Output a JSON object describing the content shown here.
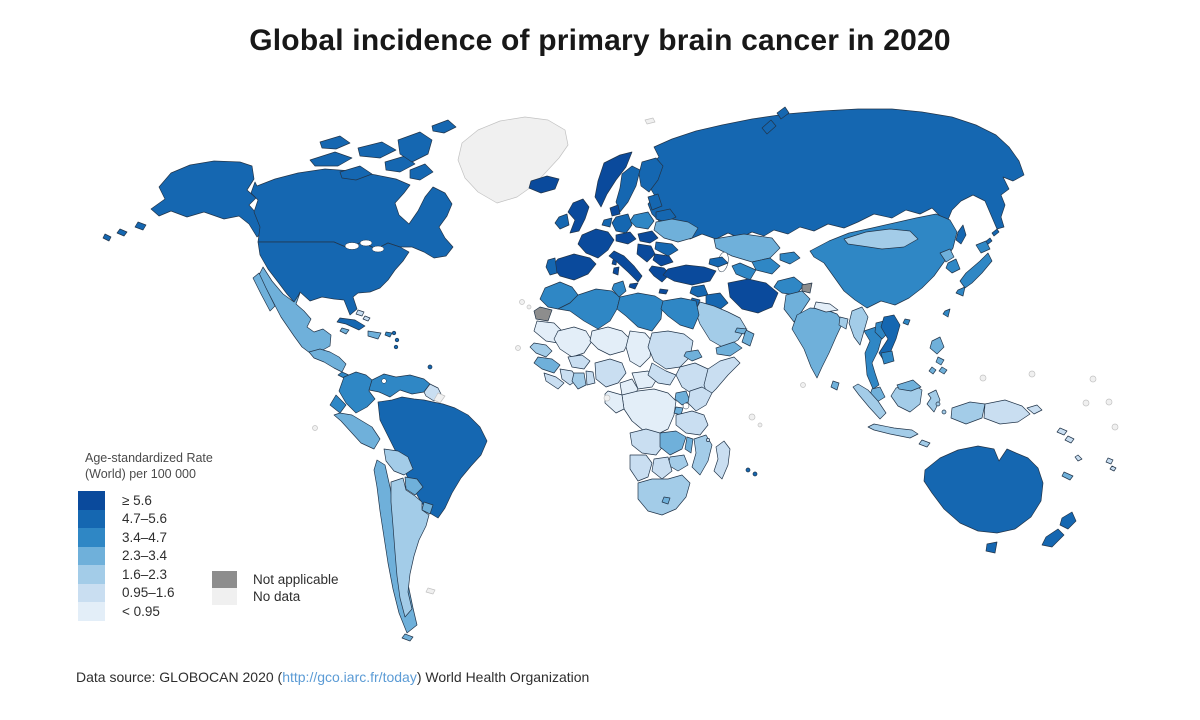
{
  "title": "Global incidence of primary brain cancer in 2020",
  "legend": {
    "title_line1": "Age-standardized Rate",
    "title_line2": "(World) per 100 000",
    "categories": [
      {
        "key": "c1",
        "label": "≥ 5.6",
        "color": "#0a4a9c"
      },
      {
        "key": "c2",
        "label": "4.7–5.6",
        "color": "#1567b1"
      },
      {
        "key": "c3",
        "label": "3.4–4.7",
        "color": "#2f87c5"
      },
      {
        "key": "c4",
        "label": "2.3–3.4",
        "color": "#6fb0da"
      },
      {
        "key": "c5",
        "label": "1.6–2.3",
        "color": "#a3cce8"
      },
      {
        "key": "c6",
        "label": "0.95–1.6",
        "color": "#c9def1"
      },
      {
        "key": "c7",
        "label": "< 0.95",
        "color": "#e3eef8"
      }
    ],
    "special": [
      {
        "key": "na",
        "label": "Not applicable",
        "color": "#8d8d8d"
      },
      {
        "key": "nd",
        "label": "No data",
        "color": "#f0f0f0"
      }
    ]
  },
  "footer": {
    "prefix": "Data source: GLOBOCAN 2020 (",
    "link": "http://gco.iarc.fr/today",
    "suffix": ") World Health Organization",
    "link_color": "#5b9bd5"
  },
  "map": {
    "ocean_color": "#ffffff",
    "border_color": "#22354a",
    "regions": {
      "alaska": "c2",
      "aleutians": "c2",
      "canada": "c2",
      "arctic-islands": "c2",
      "greenland": "nd",
      "usa": "c2",
      "mexico": "c4",
      "guatemala-honduras": "c4",
      "costa-rica-panama": "c3",
      "cuba": "c2",
      "jamaica": "c4",
      "hispaniola": "c4",
      "puerto-rico": "c3",
      "bahamas": "c6",
      "lesser-antilles": "c2",
      "colombia": "c3",
      "venezuela": "c3",
      "guyanas": "c6",
      "french-guiana": "nd",
      "ecuador": "c3",
      "peru": "c4",
      "brazil": "c2",
      "bolivia": "c5",
      "paraguay": "c4",
      "uruguay": "c4",
      "chile": "c4",
      "argentina": "c5",
      "falklands": "nd",
      "iceland": "c1",
      "norway": "c1",
      "sweden": "c2",
      "finland": "c2",
      "denmark": "c1",
      "uk": "c1",
      "ireland": "c2",
      "baltics": "c2",
      "belarus": "c2",
      "poland": "c3",
      "germany": "c2",
      "benelux": "c2",
      "france": "c1",
      "spain": "c1",
      "portugal": "c2",
      "italy": "c1",
      "austria": "c1",
      "hungary": "c1",
      "balkans": "c1",
      "bulgaria": "c1",
      "greece": "c1",
      "romania": "c2",
      "ukraine": "c4",
      "russia": "c2",
      "svalbard": "nd",
      "kazakhstan": "c4",
      "uzbekistan": "c3",
      "turkmenistan": "c3",
      "kyrgyzstan": "c3",
      "caucasus": "c2",
      "turkey": "c1",
      "syria": "c2",
      "jordan-israel": "c2",
      "iraq": "c2",
      "iran": "c1",
      "afghanistan": "c3",
      "pakistan": "c4",
      "kashmir": "na",
      "saudi-arabia": "c5",
      "yemen": "c4",
      "oman": "c4",
      "uae": "c4",
      "india": "c4",
      "nepal": "c7",
      "bangladesh": "c5",
      "sri-lanka": "c4",
      "myanmar": "c5",
      "thailand": "c3",
      "laos": "c3",
      "vietnam": "c2",
      "cambodia": "c3",
      "malaysia": "c4",
      "china": "c3",
      "mongolia": "c5",
      "north-korea": "c4",
      "south-korea": "c3",
      "japan": "c3",
      "taiwan": "c3",
      "hainan": "c3",
      "philippines": "c4",
      "sumatra": "c5",
      "java": "c5",
      "lesser-sunda": "c5",
      "kalimantan": "c5",
      "sulawesi": "c5",
      "moluccas": "c5",
      "west-papua": "c5",
      "papua-new-guinea": "c6",
      "solomon-islands": "c6",
      "vanuatu": "c6",
      "new-caledonia": "c4",
      "fiji": "c6",
      "australia": "c2",
      "tasmania": "c2",
      "new-zealand": "c2",
      "morocco": "c3",
      "western-sahara": "na",
      "algeria": "c3",
      "tunisia": "c3",
      "libya": "c3",
      "egypt": "c3",
      "mauritania": "c7",
      "mali": "c7",
      "niger": "c7",
      "chad": "c7",
      "sudan": "c6",
      "eritrea": "c4",
      "ethiopia": "c6",
      "somalia": "c6",
      "senegal": "c5",
      "guinea": "c4",
      "sierra-leone-liberia": "c6",
      "ivory-coast": "c6",
      "ghana": "c5",
      "togo-benin": "c6",
      "burkina-faso": "c6",
      "nigeria": "c6",
      "cameroon": "c7",
      "central-african-republic": "c7",
      "south-sudan": "c6",
      "drc": "c7",
      "congo-gabon": "c7",
      "uganda": "c4",
      "kenya": "c6",
      "rwanda-burundi": "c4",
      "tanzania": "c6",
      "angola": "c6",
      "zambia": "c4",
      "malawi": "c4",
      "mozambique": "c5",
      "zimbabwe": "c5",
      "botswana": "c6",
      "namibia": "c6",
      "south-africa": "c5",
      "lesotho": "c4",
      "madagascar": "c6",
      "comoros": "c6",
      "mauritius": "c2",
      "small-islands": "nd"
    }
  }
}
